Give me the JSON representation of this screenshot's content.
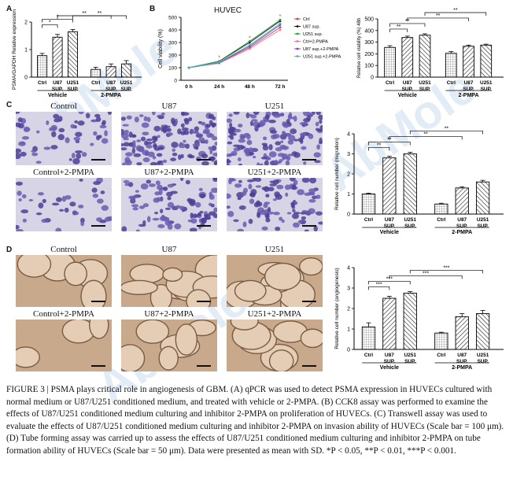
{
  "panels": {
    "a": "A",
    "b": "B",
    "c": "C",
    "d": "D"
  },
  "watermark": "AbMole",
  "chart_a": {
    "type": "bar",
    "ylabel": "PSMA/GAPDH Relative expression",
    "categories": [
      "Ctrl",
      "U87 SUP.",
      "U251 SUP.",
      "Ctrl",
      "U87 SUP.",
      "U251 SUP."
    ],
    "groups": [
      "Vehicle",
      "2-PMPA"
    ],
    "values": [
      0.78,
      1.45,
      1.65,
      0.28,
      0.38,
      0.48
    ],
    "errors": [
      0.08,
      0.1,
      0.08,
      0.08,
      0.1,
      0.12
    ],
    "ylim": [
      0,
      2
    ],
    "yticks": [
      "0",
      "1",
      "2"
    ],
    "sig": [
      "*",
      "*",
      "**",
      "**"
    ]
  },
  "chart_b": {
    "type": "line",
    "title": "HUVEC",
    "ylabel": "Cell viability (%)",
    "x": [
      "0 h",
      "24 h",
      "48 h",
      "72 h"
    ],
    "ylim": [
      0,
      500
    ],
    "yticks": [
      "0",
      "100",
      "200",
      "300",
      "400",
      "500"
    ],
    "series": [
      {
        "name": "Ctrl",
        "values": [
          100,
          140,
          260,
          420
        ],
        "color": "#d23b3b"
      },
      {
        "name": "U87 sup.",
        "values": [
          100,
          150,
          300,
          470
        ],
        "color": "#111111"
      },
      {
        "name": "U251 sup.",
        "values": [
          100,
          152,
          310,
          480
        ],
        "color": "#2e9b3a"
      },
      {
        "name": "Ctrl+2-PMPA",
        "values": [
          100,
          135,
          250,
          400
        ],
        "color": "#e07a9a"
      },
      {
        "name": "U87 sup.+2-PMPA",
        "values": [
          100,
          140,
          270,
          440
        ],
        "color": "#7a3fc0"
      },
      {
        "name": "U251 sup.+2-PMPA",
        "values": [
          100,
          143,
          280,
          450
        ],
        "color": "#3fb5c9"
      }
    ],
    "sig": [
      "*",
      "*",
      "*"
    ]
  },
  "chart_b2": {
    "type": "bar",
    "ylabel": "Relative cell viability (%) 48h",
    "categories": [
      "Ctrl",
      "U87 SUP.",
      "U251 SUP.",
      "Ctrl",
      "U87 SUP.",
      "U251 SUP."
    ],
    "groups": [
      "Vehicle",
      "2-PMPA"
    ],
    "values": [
      255,
      340,
      360,
      205,
      265,
      275
    ],
    "errors": [
      15,
      12,
      12,
      15,
      10,
      8
    ],
    "ylim": [
      0,
      500
    ],
    "yticks": [
      "0",
      "100",
      "200",
      "300",
      "400",
      "500"
    ],
    "sig": [
      "**",
      "**",
      "**",
      "**"
    ]
  },
  "panel_c": {
    "images": [
      "Control",
      "U87",
      "U251",
      "Control+2-PMPA",
      "U87+2-PMPA",
      "U251+2-PMPA"
    ]
  },
  "chart_c": {
    "type": "bar",
    "ylabel": "Relative cell number (migration)",
    "categories": [
      "Ctrl",
      "U87 SUP.",
      "U251 SUP.",
      "Ctrl",
      "U87 SUP.",
      "U251 SUP."
    ],
    "groups": [
      "Vehicle",
      "2-PMPA"
    ],
    "values": [
      1.0,
      2.8,
      3.0,
      0.5,
      1.3,
      1.6
    ],
    "errors": [
      0.04,
      0.08,
      0.08,
      0.04,
      0.06,
      0.08
    ],
    "ylim": [
      0,
      4
    ],
    "yticks": [
      "0",
      "1",
      "2",
      "3",
      "4"
    ],
    "sig": [
      "**",
      "**",
      "**",
      "**"
    ]
  },
  "panel_d": {
    "images": [
      "Control",
      "U87",
      "U251",
      "Control+2-PMPA",
      "U87+2-PMPA",
      "U251+2-PMPA"
    ]
  },
  "chart_d": {
    "type": "bar",
    "ylabel": "Relative cell number (angiogenesis)",
    "categories": [
      "Ctrl",
      "U87 SUP.",
      "U251 SUP.",
      "Ctrl",
      "U87 SUP.",
      "U251 SUP."
    ],
    "groups": [
      "Vehicle",
      "2-PMPA"
    ],
    "values": [
      1.1,
      2.5,
      2.75,
      0.8,
      1.6,
      1.75
    ],
    "errors": [
      0.2,
      0.1,
      0.08,
      0.04,
      0.15,
      0.15
    ],
    "ylim": [
      0,
      4
    ],
    "yticks": [
      "0",
      "1",
      "2",
      "3",
      "4"
    ],
    "sig": [
      "***",
      "***",
      "***",
      "***"
    ]
  },
  "caption": "FIGURE 3 | PSMA plays critical role in angiogenesis of GBM. (A) qPCR was used to detect PSMA expression in HUVECs cultured with normal medium or U87/U251 conditioned medium, and treated with vehicle or 2-PMPA. (B) CCK8 assay was performed to examine the effects of U87/U251 conditioned medium culturing and inhibitor 2-PMPA on proliferation of HUVECs. (C) Transwell assay was used to evaluate the effects of U87/U251 conditioned medium culturing and inhibitor 2-PMPA on invasion ability of HUVECs (Scale bar = 100 μm). (D) Tube forming assay was carried up to assess the effects of U87/U251 conditioned medium culturing and inhibitor 2-PMPA on tube formation ability of HUVECs (Scale bar = 50 μm). Data were presented as mean with SD. *P < 0.05, **P < 0.01, ***P < 0.001."
}
